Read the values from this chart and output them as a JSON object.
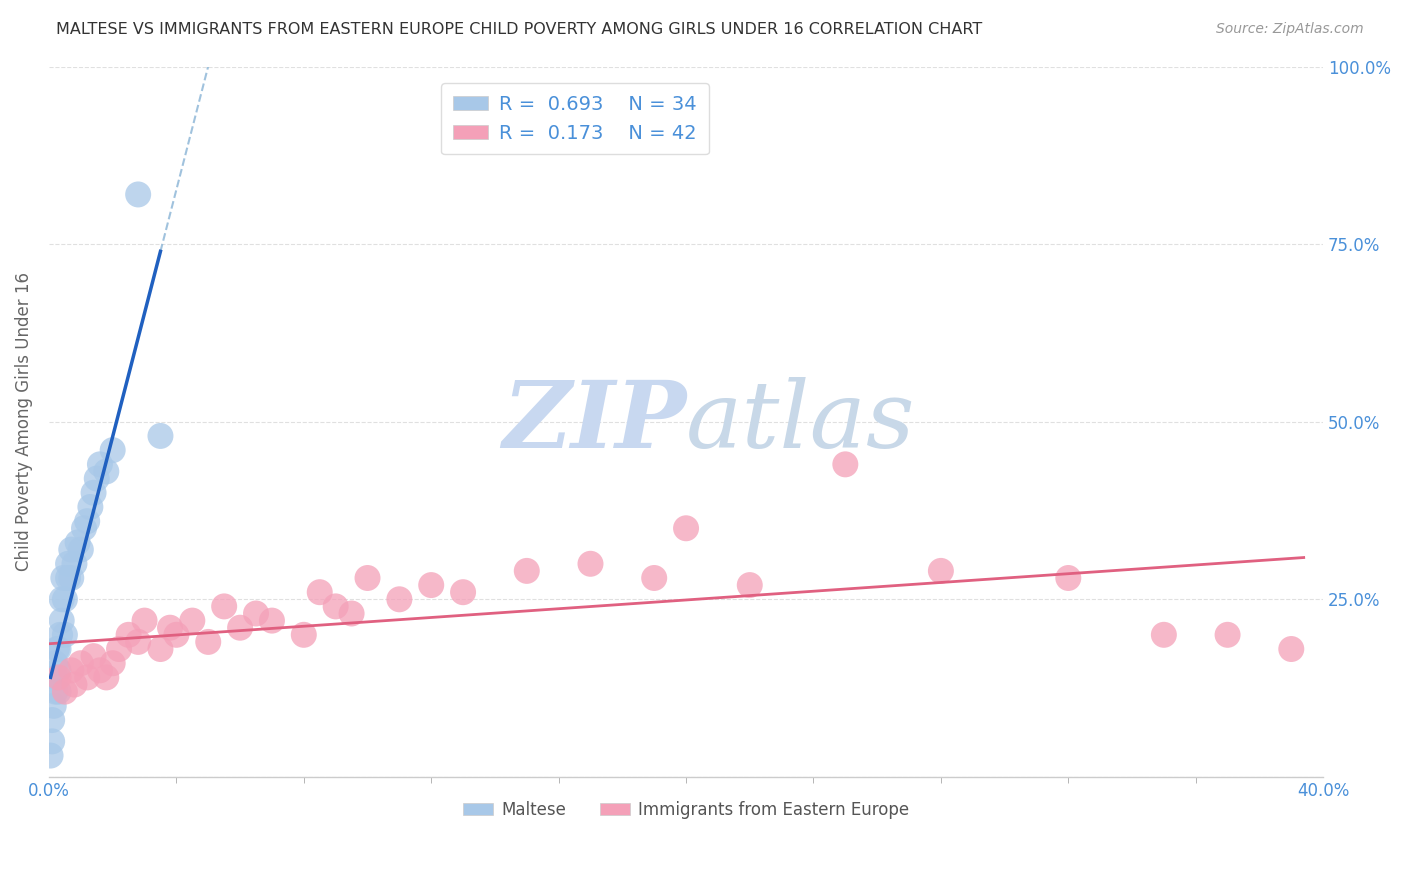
{
  "title": "MALTESE VS IMMIGRANTS FROM EASTERN EUROPE CHILD POVERTY AMONG GIRLS UNDER 16 CORRELATION CHART",
  "source": "Source: ZipAtlas.com",
  "ylabel": "Child Poverty Among Girls Under 16",
  "xlim": [
    0.0,
    0.4
  ],
  "ylim": [
    0.0,
    1.0
  ],
  "xticks_minor": [
    0.0,
    0.04,
    0.08,
    0.12,
    0.16,
    0.2,
    0.24,
    0.28,
    0.32,
    0.36,
    0.4
  ],
  "xtick_label_positions": [
    0.0,
    0.4
  ],
  "xtick_labels": [
    "0.0%",
    "40.0%"
  ],
  "yticks": [
    0.0,
    0.25,
    0.5,
    0.75,
    1.0
  ],
  "ytick_labels_right": [
    "",
    "25.0%",
    "50.0%",
    "75.0%",
    "100.0%"
  ],
  "legend_label1": "Maltese",
  "legend_label2": "Immigrants from Eastern Europe",
  "R1": "0.693",
  "N1": "34",
  "R2": "0.173",
  "N2": "42",
  "color_blue": "#a8c8e8",
  "color_pink": "#f4a0b8",
  "color_line_blue": "#2060c0",
  "color_line_pink": "#e06080",
  "color_dashed": "#90b8d8",
  "watermark_zip": "ZIP",
  "watermark_atlas": "atlas",
  "watermark_color_zip": "#c8d8f0",
  "watermark_color_atlas": "#c8d8e8",
  "blue_x": [
    0.0005,
    0.001,
    0.001,
    0.0015,
    0.002,
    0.002,
    0.002,
    0.0025,
    0.003,
    0.003,
    0.003,
    0.0035,
    0.004,
    0.004,
    0.0045,
    0.005,
    0.005,
    0.006,
    0.006,
    0.007,
    0.007,
    0.008,
    0.009,
    0.01,
    0.011,
    0.012,
    0.013,
    0.014,
    0.015,
    0.016,
    0.018,
    0.02,
    0.028,
    0.035
  ],
  "blue_y": [
    0.03,
    0.05,
    0.08,
    0.1,
    0.12,
    0.14,
    0.16,
    0.18,
    0.12,
    0.15,
    0.18,
    0.2,
    0.22,
    0.25,
    0.28,
    0.2,
    0.25,
    0.28,
    0.3,
    0.28,
    0.32,
    0.3,
    0.33,
    0.32,
    0.35,
    0.36,
    0.38,
    0.4,
    0.42,
    0.44,
    0.43,
    0.46,
    0.82,
    0.48
  ],
  "pink_x": [
    0.003,
    0.005,
    0.007,
    0.008,
    0.01,
    0.012,
    0.014,
    0.016,
    0.018,
    0.02,
    0.022,
    0.025,
    0.028,
    0.03,
    0.035,
    0.038,
    0.04,
    0.045,
    0.05,
    0.055,
    0.06,
    0.065,
    0.07,
    0.08,
    0.085,
    0.09,
    0.095,
    0.1,
    0.11,
    0.12,
    0.13,
    0.15,
    0.17,
    0.19,
    0.2,
    0.22,
    0.25,
    0.28,
    0.32,
    0.35,
    0.37,
    0.39
  ],
  "pink_y": [
    0.14,
    0.12,
    0.15,
    0.13,
    0.16,
    0.14,
    0.17,
    0.15,
    0.14,
    0.16,
    0.18,
    0.2,
    0.19,
    0.22,
    0.18,
    0.21,
    0.2,
    0.22,
    0.19,
    0.24,
    0.21,
    0.23,
    0.22,
    0.2,
    0.26,
    0.24,
    0.23,
    0.28,
    0.25,
    0.27,
    0.26,
    0.29,
    0.3,
    0.28,
    0.35,
    0.27,
    0.44,
    0.29,
    0.28,
    0.2,
    0.2,
    0.18
  ],
  "background_color": "#ffffff",
  "grid_color": "#e0e0e0"
}
